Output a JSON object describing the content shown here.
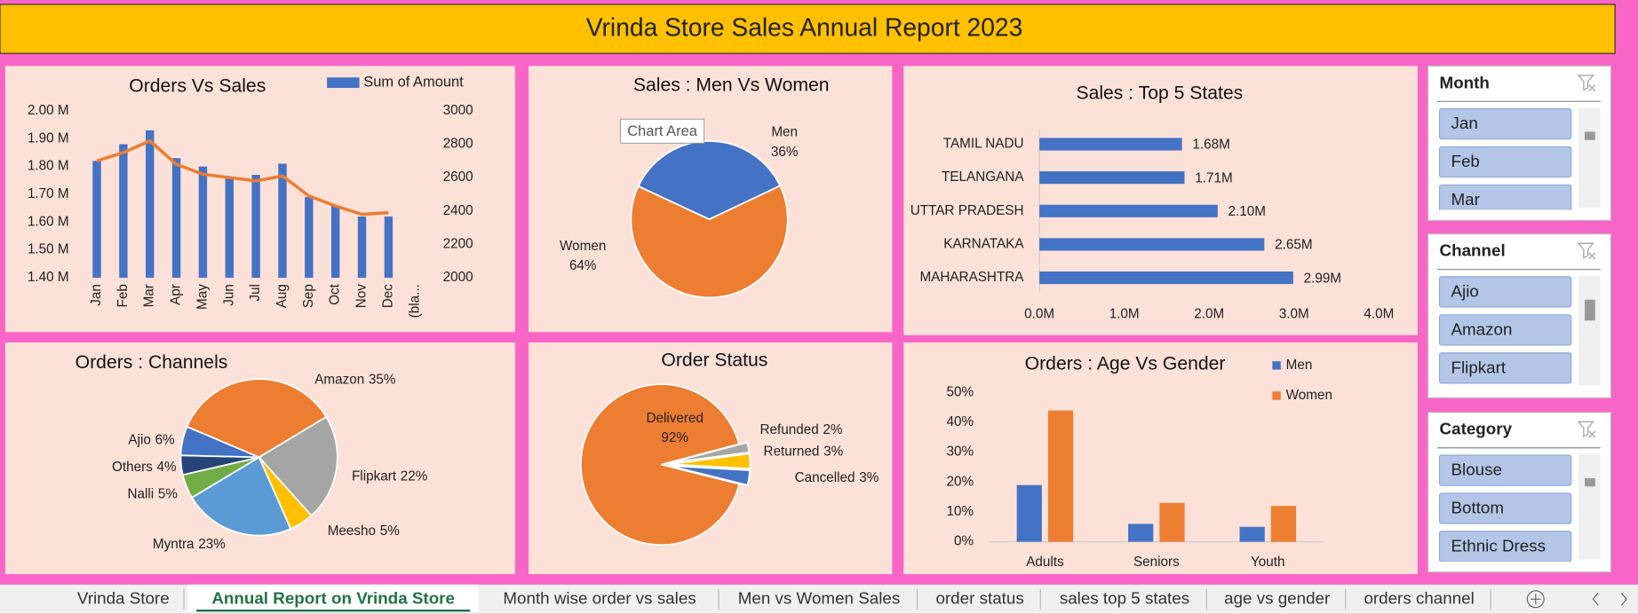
{
  "header": {
    "title": "Vrinda Store Sales Annual Report 2023"
  },
  "chart_data": [
    {
      "type": "bar_line",
      "title": "Orders Vs Sales",
      "categories": [
        "Jan",
        "Feb",
        "Mar",
        "Apr",
        "May",
        "Jun",
        "Jul",
        "Aug",
        "Sep",
        "Oct",
        "Nov",
        "Dec",
        "(bla..."
      ],
      "series": [
        {
          "name": "Sum of Amount",
          "color": "#4472c4",
          "values": [
            1.82,
            1.88,
            1.93,
            1.83,
            1.8,
            1.76,
            1.77,
            1.81,
            1.69,
            1.66,
            1.62,
            1.62,
            null
          ]
        },
        {
          "color": "#ed7d31",
          "axis": "y2",
          "values": [
            2700,
            2750,
            2820,
            2680,
            2620,
            2600,
            2580,
            2610,
            2490,
            2430,
            2380,
            2390,
            null
          ]
        }
      ],
      "ylim": [
        1.4,
        2.0
      ],
      "yticks": [
        {
          "value": 1.4,
          "label": "1.40 M"
        },
        {
          "value": 1.5,
          "label": "1.50 M"
        },
        {
          "value": 1.6,
          "label": "1.60 M"
        },
        {
          "value": 1.7,
          "label": "1.70 M"
        },
        {
          "value": 1.8,
          "label": "1.80 M"
        },
        {
          "value": 1.9,
          "label": "1.90 M"
        },
        {
          "value": 2.0,
          "label": "2.00 M"
        }
      ],
      "y2lim": [
        2000,
        3000
      ],
      "y2ticks": [
        2000,
        2200,
        2400,
        2600,
        2800,
        3000
      ]
    },
    {
      "type": "pie",
      "title": "Sales : Men Vs Women",
      "categories": [
        "Men",
        "Women"
      ],
      "values": [
        36,
        64
      ],
      "value_labels": [
        "36%",
        "64%"
      ],
      "colors": [
        "#4472c4",
        "#ed7d31"
      ],
      "tooltip": "Chart Area"
    },
    {
      "type": "hbar",
      "title": "Sales : Top 5 States",
      "categories": [
        "TAMIL NADU",
        "TELANGANA",
        "UTTAR PRADESH",
        "KARNATAKA",
        "MAHARASHTRA"
      ],
      "values": [
        1.68,
        1.71,
        2.1,
        2.65,
        2.99
      ],
      "value_labels": [
        "1.68M",
        "1.71M",
        "2.10M",
        "2.65M",
        "2.99M"
      ],
      "color": "#4472c4",
      "xlim": [
        0,
        4
      ],
      "xticks": [
        {
          "value": 0,
          "label": "0.0M"
        },
        {
          "value": 1,
          "label": "1.0M"
        },
        {
          "value": 2,
          "label": "2.0M"
        },
        {
          "value": 3,
          "label": "3.0M"
        },
        {
          "value": 4,
          "label": "4.0M"
        }
      ]
    },
    {
      "type": "pie",
      "title": "Orders : Channels",
      "categories": [
        "Amazon",
        "Flipkart",
        "Meesho",
        "Myntra",
        "Nalli",
        "Others",
        "Ajio"
      ],
      "values": [
        35,
        22,
        5,
        23,
        5,
        4,
        6
      ],
      "value_labels": [
        "35%",
        "22%",
        "5%",
        "23%",
        "5%",
        "4%",
        "6%"
      ],
      "colors": [
        "#ed7d31",
        "#a5a5a5",
        "#ffc000",
        "#5b9bd5",
        "#70ad47",
        "#264478",
        "#4472c4"
      ]
    },
    {
      "type": "pie",
      "title": "Order Status",
      "categories": [
        "Delivered",
        "Refunded",
        "Returned",
        "Cancelled"
      ],
      "values": [
        92,
        2,
        3,
        3
      ],
      "value_labels": [
        "92%",
        "2%",
        "3%",
        "3%"
      ],
      "colors": [
        "#ed7d31",
        "#a5a5a5",
        "#ffc000",
        "#4472c4"
      ]
    },
    {
      "type": "grouped_bar",
      "title": "Orders : Age Vs Gender",
      "categories": [
        "Adults",
        "Seniors",
        "Youth"
      ],
      "series": [
        {
          "name": "Men",
          "color": "#4472c4",
          "values": [
            19,
            6,
            5
          ]
        },
        {
          "name": "Women",
          "color": "#ed7d31",
          "values": [
            44,
            13,
            12
          ]
        }
      ],
      "ylim": [
        0,
        50
      ],
      "yticks": [
        {
          "value": 0,
          "label": "0%"
        },
        {
          "value": 10,
          "label": "10%"
        },
        {
          "value": 20,
          "label": "20%"
        },
        {
          "value": 30,
          "label": "30%"
        },
        {
          "value": 40,
          "label": "40%"
        },
        {
          "value": 50,
          "label": "50%"
        }
      ]
    }
  ],
  "slicers": [
    {
      "title": "Month",
      "items": [
        "Jan",
        "Feb",
        "Mar"
      ]
    },
    {
      "title": "Channel",
      "items": [
        "Ajio",
        "Amazon",
        "Flipkart"
      ]
    },
    {
      "title": "Category",
      "items": [
        "Blouse",
        "Bottom",
        "Ethnic Dress"
      ]
    }
  ],
  "sheet_tabs": {
    "tabs": [
      "Vrinda Store",
      "Annual Report on Vrinda Store",
      "Month wise order vs sales",
      "Men vs Women Sales",
      "order status",
      "sales top 5 states",
      "age vs gender",
      "orders channel"
    ],
    "active": 1
  }
}
